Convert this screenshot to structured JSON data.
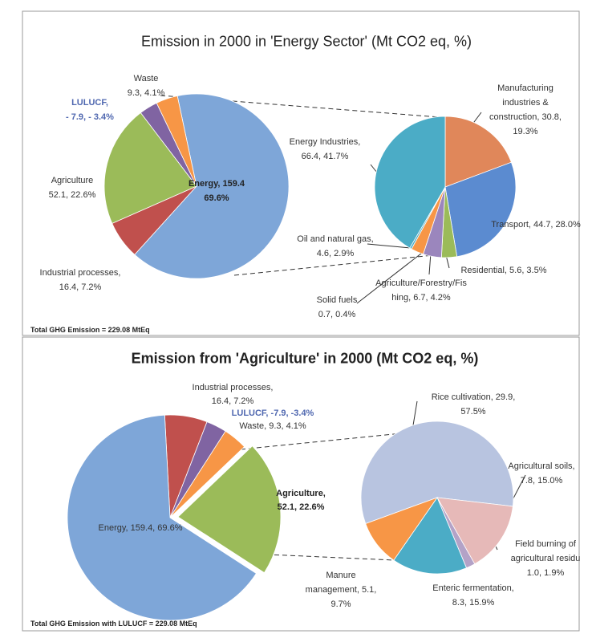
{
  "chart_data": [
    {
      "type": "pie-of-pie",
      "title": "Emission in 2000 in 'Energy Sector' (Mt CO2 eq, %)",
      "note": "Total GHG Emission = 229.08 MtEq",
      "pies": [
        {
          "labels": [
            [
              "Energy, 159.4",
              "69.6%"
            ],
            [
              "Industrial processes,",
              "16.4, 7.2%"
            ],
            [
              "Agriculture",
              "52.1, 22.6%"
            ],
            [
              "LULUCF,",
              "- 7.9,  - 3.4%"
            ],
            [
              "Waste",
              "9.3, 4.1%"
            ]
          ],
          "values": [
            159.4,
            16.4,
            52.1,
            -7.9,
            9.3
          ],
          "percents": [
            69.6,
            7.2,
            22.6,
            -3.4,
            4.1
          ],
          "colors": [
            "#7ea6d8",
            "#c0504d",
            "#9bbb59",
            "#8064a2",
            "#f79646"
          ]
        },
        {
          "labels": [
            [
              "Manufacturing",
              "industries &",
              "construction, 30.8,",
              "19.3%"
            ],
            [
              "Transport, 44.7, 28.0%"
            ],
            [
              "Residential, 5.6, 3.5%"
            ],
            [
              "Agriculture/Forestry/Fis",
              "hing, 6.7, 4.2%"
            ],
            [
              "Oil and natural gas,",
              "4.6, 2.9%"
            ],
            [
              "Solid fuels",
              "0.7, 0.4%"
            ],
            [
              "Energy Industries,",
              "66.4, 41.7%"
            ]
          ],
          "values": [
            30.8,
            44.7,
            5.6,
            6.7,
            4.6,
            0.7,
            66.4
          ],
          "percents": [
            19.3,
            28.0,
            3.5,
            4.2,
            2.9,
            0.4,
            41.7
          ],
          "colors": [
            "#e0875a",
            "#5b8bd0",
            "#9bbb59",
            "#9b86bd",
            "#f79646",
            "#4bacc6",
            "#4bacc6"
          ]
        }
      ]
    },
    {
      "type": "pie-of-pie",
      "title": "Emission from 'Agriculture' in 2000 (Mt CO2 eq, %)",
      "note": "Total GHG Emission with LULUCF = 229.08 MtEq",
      "pies": [
        {
          "labels": [
            [
              "Industrial processes,",
              "16.4, 7.2%"
            ],
            [
              "LULUCF, -7.9, -3.4%"
            ],
            [
              "Waste, 9.3, 4.1%"
            ],
            [
              "Agriculture,",
              "52.1, 22.6%"
            ],
            [
              "Energy, 159.4, 69.6%"
            ]
          ],
          "values": [
            16.4,
            -7.9,
            9.3,
            52.1,
            159.4
          ],
          "percents": [
            7.2,
            -3.4,
            4.1,
            22.6,
            69.6
          ],
          "colors": [
            "#c0504d",
            "#8064a2",
            "#f79646",
            "#9bbb59",
            "#7ea6d8"
          ]
        },
        {
          "labels": [
            [
              "Rice cultivation, 29.9,",
              "57.5%"
            ],
            [
              "Agricultural soils,",
              "7.8, 15.0%"
            ],
            [
              "Field burning of",
              "agricultural residu",
              "1.0, 1.9%"
            ],
            [
              "Enteric fermentation,",
              "8.3, 15.9%"
            ],
            [
              "Manure",
              "management, 5.1,",
              "9.7%"
            ]
          ],
          "values": [
            29.9,
            7.8,
            1.0,
            8.3,
            5.1
          ],
          "percents": [
            57.5,
            15.0,
            1.9,
            15.9,
            9.7
          ],
          "colors": [
            "#b8c4e0",
            "#e6b9b8",
            "#b3a2c7",
            "#4bacc6",
            "#f79646"
          ]
        }
      ]
    }
  ]
}
